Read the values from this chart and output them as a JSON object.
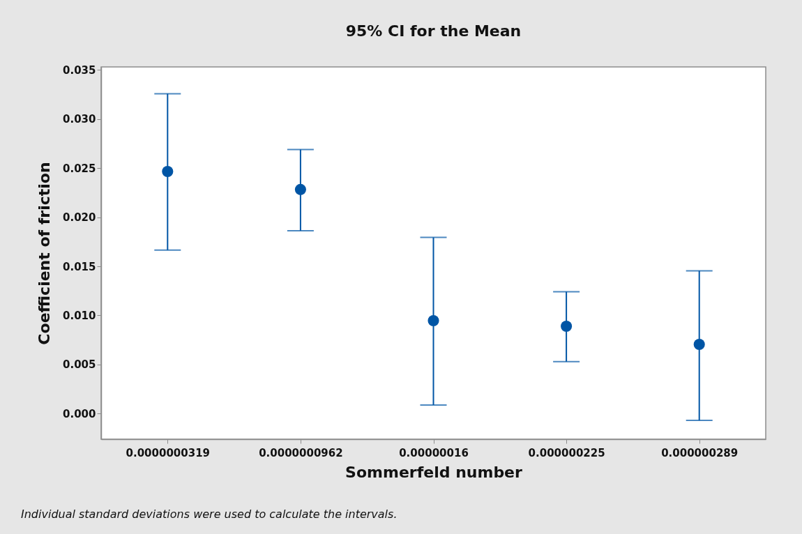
{
  "chart_data": {
    "type": "scatter",
    "title": "95% CI for the Mean",
    "xlabel": "Sommerfeld number",
    "ylabel": "Coefficient of friction",
    "categories": [
      "0.0000000319",
      "0.0000000962",
      "0.00000016",
      "0.000000225",
      "0.000000289"
    ],
    "series": [
      {
        "color": "#0055a5",
        "values": [
          0.02465,
          0.02282,
          0.00947,
          0.0089,
          0.00705
        ],
        "errors": [
          [
            0.01665,
            0.03257
          ],
          [
            0.01863,
            0.02689
          ],
          [
            0.00088,
            0.01794
          ],
          [
            0.0053,
            0.01241
          ],
          [
            -0.00069,
            0.01454
          ]
        ]
      }
    ],
    "marker": "circle",
    "grid": false,
    "ylim": [
      -0.0026,
      0.0353
    ],
    "yticks": [
      {
        "value": 0,
        "label": "0.000"
      },
      {
        "value": 0.005,
        "label": "0.005"
      },
      {
        "value": 0.01,
        "label": "0.010"
      },
      {
        "value": 0.015,
        "label": "0.015"
      },
      {
        "value": 0.02,
        "label": "0.020"
      },
      {
        "value": 0.025,
        "label": "0.025"
      },
      {
        "value": 0.03,
        "label": "0.030"
      },
      {
        "value": 0.035,
        "label": "0.035"
      }
    ],
    "annotations": [
      "Individual standard deviations were used to calculate the intervals."
    ]
  }
}
